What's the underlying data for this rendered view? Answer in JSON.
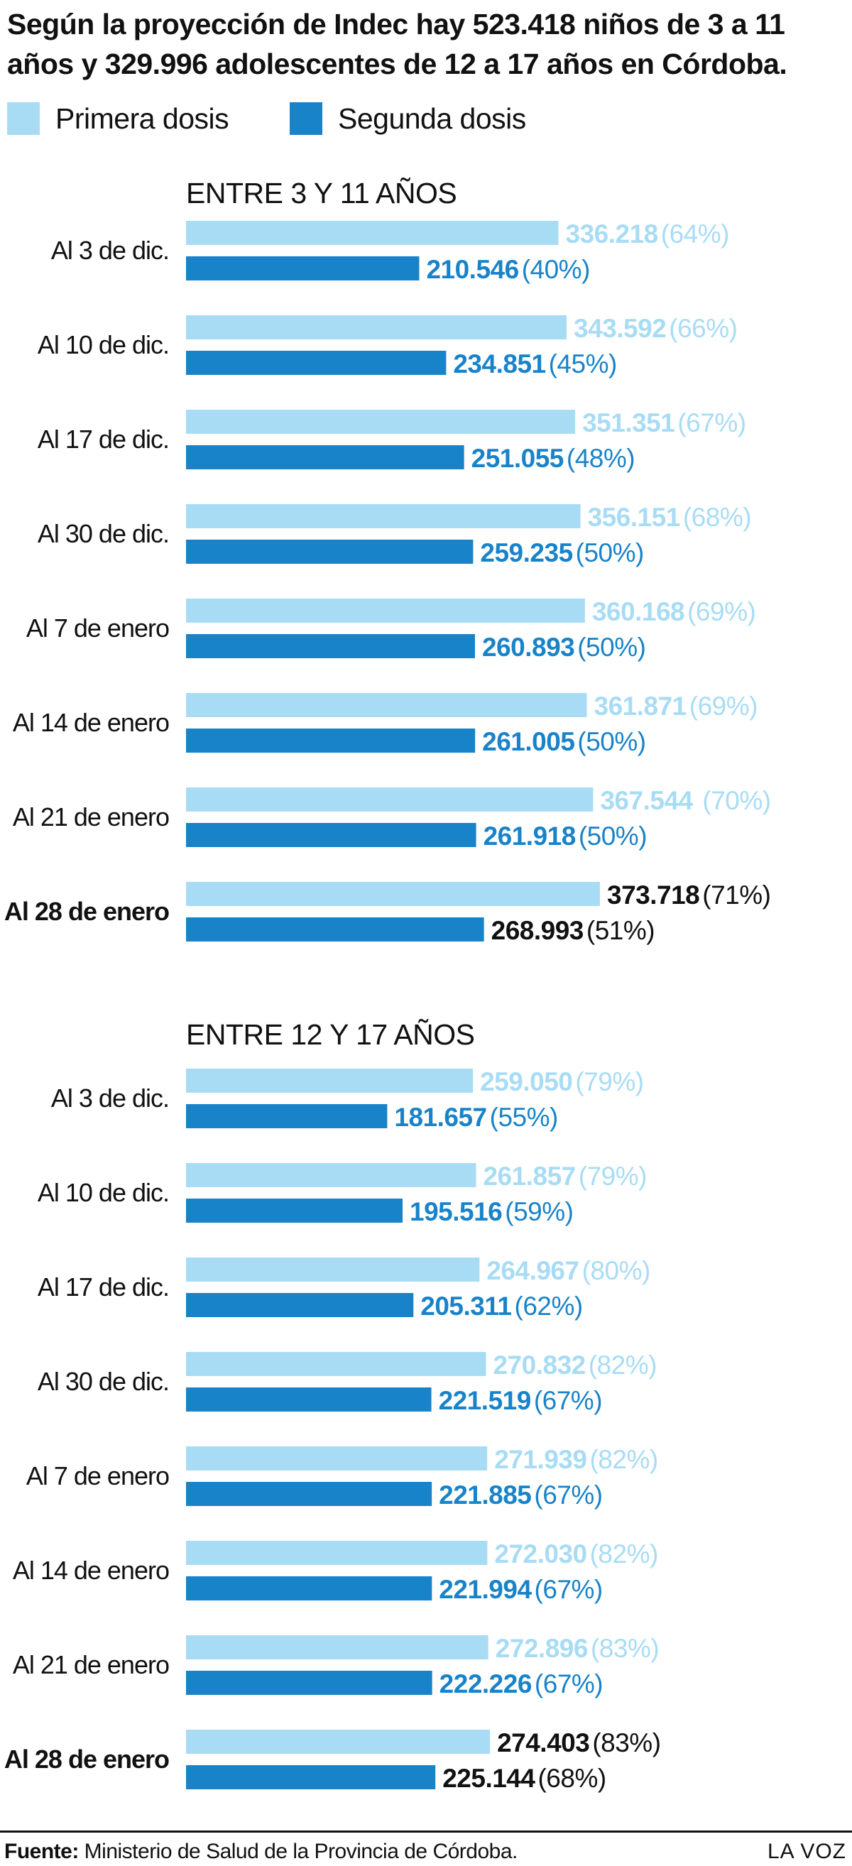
{
  "headline": "Según la proyección de Indec hay 523.418 niños de 3 a 11 años y 329.996 adolescentes de 12 a 17 años en Córdoba.",
  "legend": [
    {
      "label": "Primera dosis",
      "color": "#a8dcf5"
    },
    {
      "label": "Segunda dosis",
      "color": "#1983c9"
    }
  ],
  "colors": {
    "first_bar": "#a8dcf5",
    "second_bar": "#1983c9",
    "first_text": "#a8dcf5",
    "second_text": "#1983c9",
    "highlight_text": "#111111"
  },
  "chart_data": [
    {
      "type": "bar",
      "title": "ENTRE 3 Y 11 AÑOS",
      "orientation": "horizontal",
      "categories": [
        "Al 3 de dic.",
        "Al 10 de dic.",
        "Al 17 de dic.",
        "Al 30 de dic.",
        "Al 7 de enero",
        "Al 14 de enero",
        "Al 21 de enero",
        "Al 28 de enero"
      ],
      "highlight_category": "Al 28 de enero",
      "series": [
        {
          "name": "Primera dosis",
          "values": [
            336218,
            343592,
            351351,
            356151,
            360168,
            361871,
            367544,
            373718
          ],
          "value_labels": [
            "336.218",
            "343.592",
            "351.351",
            "356.151",
            "360.168",
            "361.871",
            "367.544",
            "373.718"
          ],
          "percent_labels": [
            "(64%)",
            "(66%)",
            "(67%)",
            "(68%)",
            "(69%)",
            "(69%)",
            " (70%)",
            "(71%)"
          ]
        },
        {
          "name": "Segunda dosis",
          "values": [
            210546,
            234851,
            251055,
            259235,
            260893,
            261005,
            261918,
            268993
          ],
          "value_labels": [
            "210.546",
            "234.851",
            "251.055",
            "259.235",
            "260.893",
            "261.005",
            "261.918",
            "268.993"
          ],
          "percent_labels": [
            "(40%)",
            "(45%)",
            "(48%)",
            "(50%)",
            "(50%)",
            "(50%)",
            "(50%)",
            "(51%)"
          ]
        }
      ]
    },
    {
      "type": "bar",
      "title": "ENTRE 12 Y 17 AÑOS",
      "orientation": "horizontal",
      "categories": [
        "Al 3 de dic.",
        "Al 10 de dic.",
        "Al 17 de dic.",
        "Al 30 de dic.",
        "Al 7 de enero",
        "Al 14 de enero",
        "Al 21 de enero",
        "Al 28 de enero"
      ],
      "highlight_category": "Al 28 de enero",
      "series": [
        {
          "name": "Primera dosis",
          "values": [
            259050,
            261857,
            264967,
            270832,
            271939,
            272030,
            272896,
            274403
          ],
          "value_labels": [
            "259.050",
            "261.857",
            "264.967",
            "270.832",
            "271.939",
            "272.030",
            "272.896",
            "274.403"
          ],
          "percent_labels": [
            "(79%)",
            "(79%)",
            "(80%)",
            "(82%)",
            "(82%)",
            "(82%)",
            "(83%)",
            "(83%)"
          ]
        },
        {
          "name": "Segunda dosis",
          "values": [
            181657,
            195516,
            205311,
            221519,
            221885,
            221994,
            222226,
            225144
          ],
          "value_labels": [
            "181.657",
            "195.516",
            "205.311",
            "221.519",
            "221.885",
            "221.994",
            "222.226",
            "225.144"
          ],
          "percent_labels": [
            "(55%)",
            "(59%)",
            "(62%)",
            "(67%)",
            "(67%)",
            "(67%)",
            "(67%)",
            "(68%)"
          ]
        }
      ]
    }
  ],
  "footer": {
    "source_label": "Fuente:",
    "source_text": "Ministerio de Salud de la Provincia de Córdoba.",
    "brand": "LA VOZ"
  }
}
